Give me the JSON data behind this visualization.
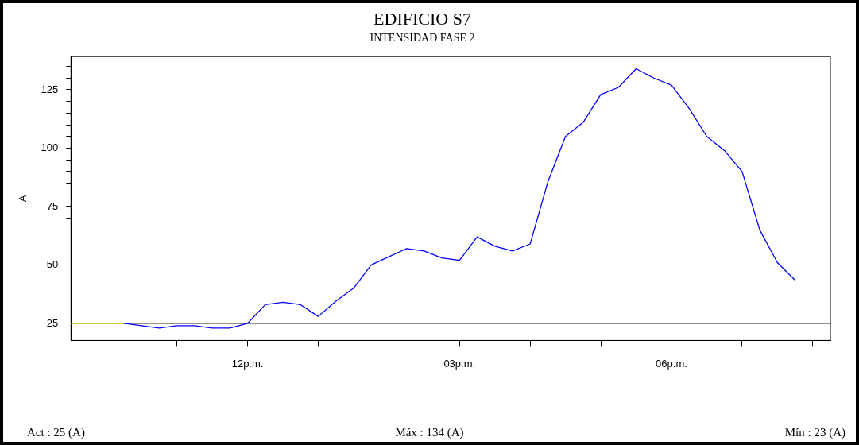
{
  "chart_data": {
    "type": "line",
    "title": "EDIFICIO S7",
    "subtitle": "INTENSIDAD FASE 2",
    "ylabel": "A",
    "categories": [
      null,
      null,
      null,
      null,
      null,
      null,
      null,
      null,
      null,
      null,
      "12p.m.",
      null,
      null,
      null,
      null,
      null,
      null,
      null,
      null,
      null,
      null,
      null,
      "03p.m.",
      null,
      null,
      null,
      null,
      null,
      null,
      null,
      null,
      null,
      null,
      null,
      "06p.m.",
      null,
      null,
      null,
      null,
      null,
      null,
      null,
      null,
      null
    ],
    "ylim": [
      17.7,
      139.2
    ],
    "yticks": [
      {
        "value": 20,
        "label": null
      },
      25,
      {
        "value": 30,
        "label": null
      },
      {
        "value": 35,
        "label": null
      },
      {
        "value": 40,
        "label": null
      },
      {
        "value": 45,
        "label": null
      },
      50,
      {
        "value": 55,
        "label": null
      },
      {
        "value": 60,
        "label": null
      },
      {
        "value": 65,
        "label": null
      },
      {
        "value": 70,
        "label": null
      },
      75,
      {
        "value": 80,
        "label": null
      },
      {
        "value": 85,
        "label": null
      },
      {
        "value": 90,
        "label": null
      },
      {
        "value": 95,
        "label": null
      },
      100,
      {
        "value": 105,
        "label": null
      },
      {
        "value": 110,
        "label": null
      },
      {
        "value": 115,
        "label": null
      },
      {
        "value": 120,
        "label": null
      },
      125,
      {
        "value": 130,
        "label": null
      },
      {
        "value": 135,
        "label": null
      }
    ],
    "series": [
      {
        "color": "#ffff00",
        "values": [
          25,
          25,
          25,
          25,
          null,
          null,
          null,
          null,
          null,
          null,
          null,
          null,
          null,
          null,
          null,
          null,
          null,
          null,
          null,
          null,
          null,
          null,
          null,
          null,
          null,
          null,
          null,
          null,
          null,
          null,
          null,
          null,
          null,
          null,
          null,
          null,
          null,
          null,
          null,
          null,
          null,
          null,
          null,
          null
        ]
      },
      {
        "color": "#0000ff",
        "values": [
          null,
          null,
          null,
          25,
          24,
          23,
          24,
          24,
          23,
          23,
          25,
          33,
          34,
          33,
          28,
          34.5,
          40,
          50,
          53.5,
          57,
          56,
          53,
          52,
          62,
          58,
          56,
          59,
          85.5,
          105,
          111,
          123,
          126,
          134,
          130,
          127,
          117,
          105,
          99,
          90,
          65,
          51,
          43.5,
          null,
          null
        ]
      }
    ],
    "ref_lines": [
      {
        "axis": "y",
        "value": 25,
        "color": "#000000"
      }
    ],
    "grid": false,
    "legend": false,
    "marker": "none",
    "line_style": "solid",
    "annotations": [
      "Act : 25 (A)",
      "Máx : 134 (A)",
      "Mín : 23 (A)"
    ]
  }
}
